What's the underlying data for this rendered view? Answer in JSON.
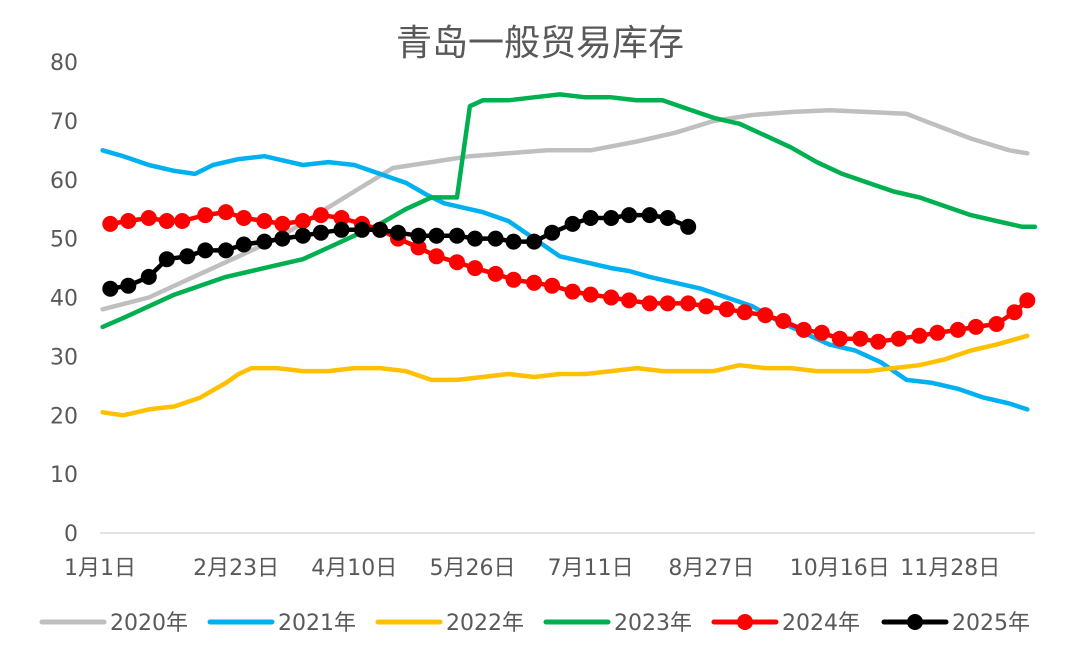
{
  "chart_data": {
    "type": "line",
    "title": "青岛一般贸易库存",
    "xlabel": "",
    "ylabel": "",
    "ylim": [
      0,
      80
    ],
    "yticks": [
      0,
      10,
      20,
      30,
      40,
      50,
      60,
      70,
      80
    ],
    "x_tick_labels": [
      "1月1日",
      "2月23日",
      "4月10日",
      "5月26日",
      "7月11日",
      "8月27日",
      "10月16日",
      "11月28日"
    ],
    "x_tick_days": [
      1,
      54,
      100,
      146,
      192,
      239,
      289,
      332
    ],
    "xlim": [
      1,
      365
    ],
    "grid": false,
    "legend_position": "bottom",
    "series": [
      {
        "name": "2020年",
        "color": "#BFBFBF",
        "markers": false,
        "x": [
          2,
          20,
          35,
          55,
          70,
          85,
          100,
          115,
          130,
          145,
          160,
          175,
          192,
          210,
          225,
          240,
          255,
          270,
          285,
          300,
          315,
          325,
          340,
          355,
          362
        ],
        "y": [
          38,
          40,
          43,
          47,
          50,
          54,
          58,
          62,
          63,
          64,
          64.5,
          65,
          65,
          66.5,
          68,
          70,
          71,
          71.5,
          71.8,
          71.5,
          71.2,
          69.5,
          67,
          65,
          64.5
        ]
      },
      {
        "name": "2021年",
        "color": "#00B0F0",
        "markers": false,
        "x": [
          2,
          10,
          20,
          30,
          38,
          45,
          55,
          65,
          75,
          80,
          90,
          100,
          110,
          120,
          128,
          135,
          145,
          150,
          160,
          170,
          180,
          190,
          200,
          207,
          215,
          225,
          235,
          245,
          255,
          265,
          275,
          285,
          295,
          305,
          315,
          325,
          335,
          345,
          355,
          362
        ],
        "y": [
          65,
          64,
          62.5,
          61.5,
          61,
          62.5,
          63.5,
          64,
          63,
          62.5,
          63,
          62.5,
          61,
          59.5,
          57.5,
          56,
          55,
          54.5,
          53,
          50,
          47,
          46,
          45,
          44.5,
          43.5,
          42.5,
          41.5,
          40,
          38.5,
          36,
          34,
          32,
          31,
          29,
          26,
          25.5,
          24.5,
          23,
          22,
          21
        ]
      },
      {
        "name": "2022年",
        "color": "#FFC000",
        "markers": false,
        "x": [
          2,
          10,
          20,
          30,
          40,
          50,
          55,
          60,
          65,
          70,
          80,
          90,
          100,
          110,
          120,
          130,
          140,
          150,
          160,
          170,
          180,
          190,
          200,
          210,
          220,
          230,
          240,
          250,
          260,
          270,
          280,
          290,
          300,
          310,
          320,
          330,
          340,
          350,
          362
        ],
        "y": [
          20.5,
          20,
          21,
          21.5,
          23,
          25.5,
          27,
          28,
          28,
          28,
          27.5,
          27.5,
          28,
          28,
          27.5,
          26,
          26,
          26.5,
          27,
          26.5,
          27,
          27,
          27.5,
          28,
          27.5,
          27.5,
          27.5,
          28.5,
          28,
          28,
          27.5,
          27.5,
          27.5,
          28,
          28.5,
          29.5,
          31,
          32,
          33.5
        ]
      },
      {
        "name": "2023年",
        "color": "#00B050",
        "markers": false,
        "x": [
          2,
          10,
          20,
          30,
          40,
          50,
          60,
          70,
          80,
          90,
          100,
          110,
          120,
          130,
          140,
          145,
          150,
          155,
          160,
          170,
          180,
          190,
          200,
          210,
          220,
          230,
          240,
          250,
          260,
          270,
          280,
          290,
          300,
          310,
          320,
          330,
          340,
          350,
          360,
          365
        ],
        "y": [
          35,
          36.5,
          38.5,
          40.5,
          42,
          43.5,
          44.5,
          45.5,
          46.5,
          48.5,
          50.5,
          52.5,
          55,
          57,
          57,
          72.5,
          73.5,
          73.5,
          73.5,
          74,
          74.5,
          74,
          74,
          73.5,
          73.5,
          72,
          70.5,
          69.5,
          67.5,
          65.5,
          63,
          61,
          59.5,
          58,
          57,
          55.5,
          54,
          53,
          52,
          52
        ]
      },
      {
        "name": "2024年",
        "color": "#FF0000",
        "markers": true,
        "x": [
          5,
          12,
          20,
          27,
          33,
          42,
          50,
          57,
          65,
          72,
          80,
          87,
          95,
          103,
          110,
          117,
          125,
          132,
          140,
          147,
          155,
          162,
          170,
          177,
          185,
          192,
          200,
          207,
          215,
          222,
          230,
          237,
          245,
          252,
          260,
          267,
          275,
          282,
          289,
          297,
          304,
          312,
          320,
          327,
          335,
          342,
          350,
          357,
          362
        ],
        "y": [
          52.5,
          53,
          53.5,
          53,
          53,
          54,
          54.5,
          53.5,
          53,
          52.5,
          53,
          54,
          53.5,
          52.5,
          51.5,
          50,
          48.5,
          47,
          46,
          45,
          44,
          43,
          42.5,
          42,
          41,
          40.5,
          40,
          39.5,
          39,
          39,
          39,
          38.5,
          38,
          37.5,
          37,
          36,
          34.5,
          34,
          33,
          33,
          32.5,
          33,
          33.5,
          34,
          34.5,
          35,
          35.5,
          37.5,
          39.5
        ]
      },
      {
        "name": "2025年",
        "color": "#000000",
        "markers": true,
        "x": [
          5,
          12,
          20,
          27,
          35,
          42,
          50,
          57,
          65,
          72,
          80,
          87,
          95,
          103,
          110,
          117,
          125,
          132,
          140,
          147,
          155,
          162,
          170,
          177,
          185,
          192,
          200,
          207,
          215,
          222,
          230
        ],
        "y": [
          41.5,
          42,
          43.5,
          46.5,
          47,
          48,
          48,
          49,
          49.5,
          50,
          50.5,
          51,
          51.5,
          51.5,
          51.5,
          51,
          50.5,
          50.5,
          50.5,
          50,
          50,
          49.5,
          49.5,
          51,
          52.5,
          53.5,
          53.5,
          54,
          54,
          53.5,
          52
        ]
      }
    ]
  }
}
